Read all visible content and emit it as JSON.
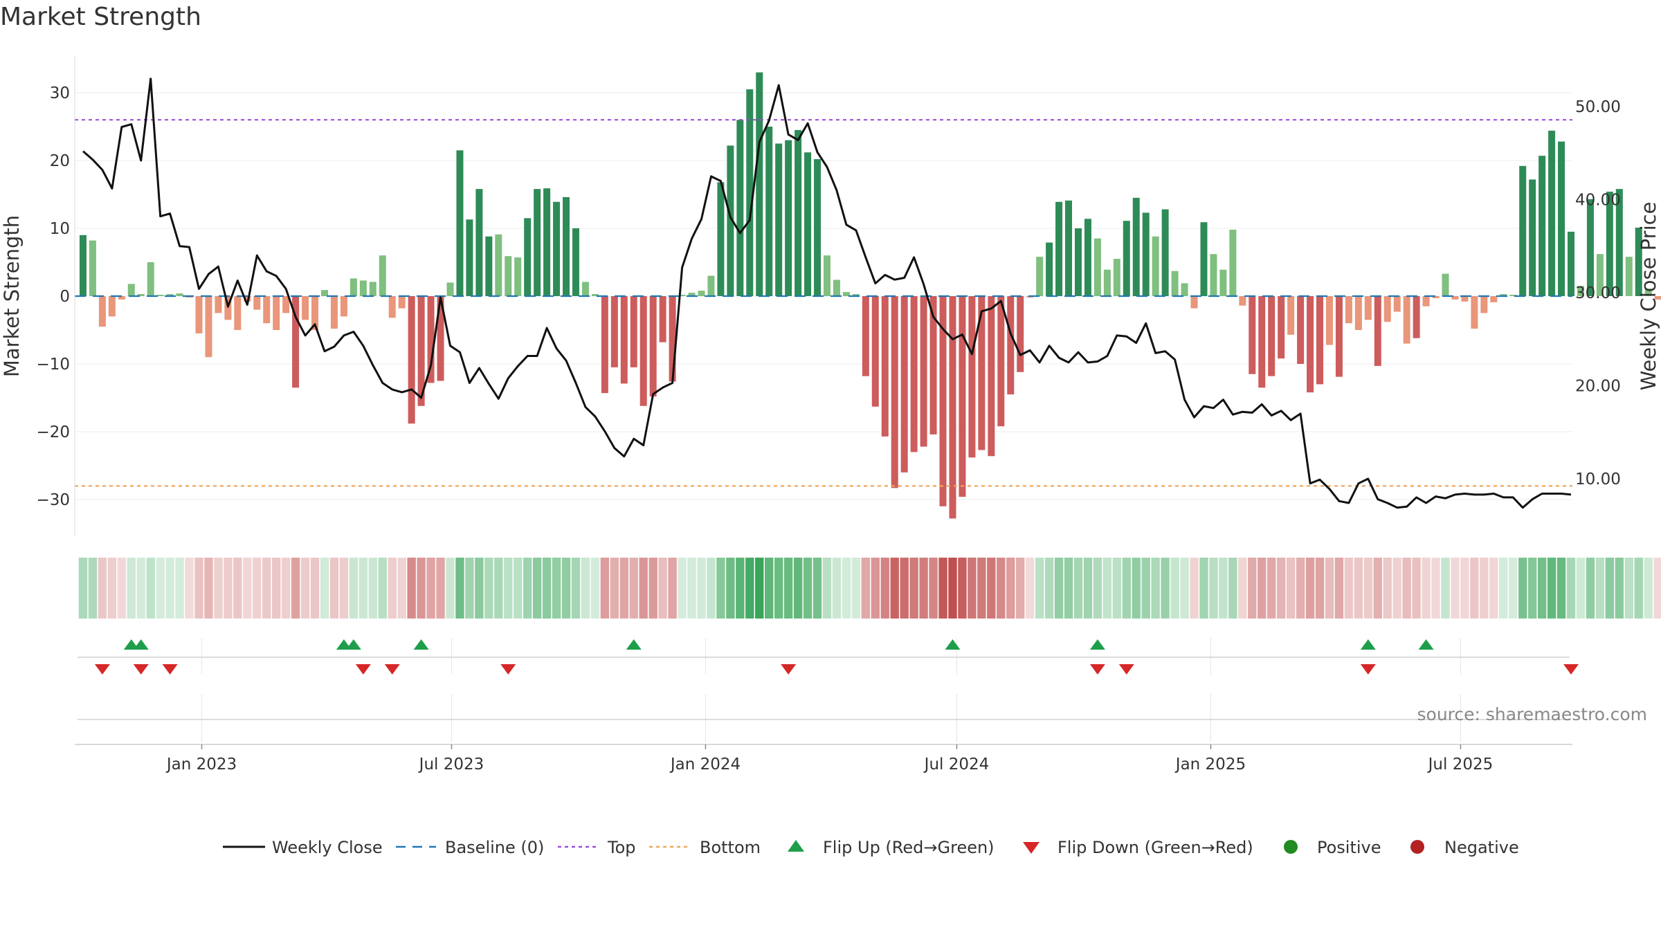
{
  "title": "Market Strength",
  "source": "source: sharemaestro.com",
  "colors": {
    "strong_green": "#2e8b57",
    "light_green": "#7fbf7f",
    "strong_red": "#cd5c5c",
    "light_red": "#e9967a",
    "line": "#111111",
    "baseline": "#1f77b4",
    "top": "#9c4fd9",
    "bottom": "#f0a55a",
    "flip_up": "#1e9e4a",
    "flip_down": "#d62728",
    "positive": "#228b22",
    "negative": "#b22222"
  },
  "chart_data": {
    "type": "bar+line",
    "title": "Market Strength",
    "ylabel_left": "Market Strength",
    "ylabel_right": "Weekly Close Price",
    "ylim_left": [
      -35,
      35
    ],
    "ylim_right": [
      5,
      55
    ],
    "left_ticks": [
      30,
      20,
      10,
      0,
      -10,
      -20,
      -30
    ],
    "left_tick_labels": [
      "30",
      "20",
      "10",
      "0",
      "−10",
      "−20",
      "−30"
    ],
    "right_ticks": [
      50,
      40,
      30,
      20,
      10
    ],
    "right_tick_labels": [
      "50.00",
      "40.00",
      "30.00",
      "20.00",
      "10.00"
    ],
    "top_line": 26,
    "bottom_line": -28,
    "x_start": "2022-10-01",
    "x_end": "2025-09-20",
    "x_ticks": [
      {
        "date": "2023-01-01",
        "label": "Jan 2023"
      },
      {
        "date": "2023-07-01",
        "label": "Jul 2023"
      },
      {
        "date": "2024-01-01",
        "label": "Jan 2024"
      },
      {
        "date": "2024-07-01",
        "label": "Jul 2024"
      },
      {
        "date": "2025-01-01",
        "label": "Jan 2025"
      },
      {
        "date": "2025-07-01",
        "label": "Jul 2025"
      }
    ],
    "series_start": "2022-10-07",
    "week_step_days": 7,
    "strength": [
      9,
      8.2,
      -4.5,
      -3,
      -0.5,
      1.8,
      0.3,
      5,
      0.2,
      0.3,
      0.4,
      -0.2,
      -5.5,
      -9,
      -2.5,
      -3.5,
      -5,
      -0.8,
      -2,
      -4,
      -5,
      -2.5,
      -13.5,
      -3.5,
      -5,
      0.9,
      -4.8,
      -3,
      2.6,
      2.3,
      2.1,
      6,
      -3.2,
      -1.8,
      -18.8,
      -16.2,
      -12.8,
      -12.5,
      2,
      21.5,
      11.3,
      15.8,
      8.8,
      9.1,
      5.9,
      5.7,
      11.5,
      15.8,
      15.9,
      13.9,
      14.6,
      10,
      2.1,
      0.3,
      -14.3,
      -10.5,
      -12.9,
      -10.5,
      -16.2,
      -14.8,
      -6.8,
      -12.6,
      0.2,
      0.5,
      0.8,
      3,
      16.8,
      22.2,
      26,
      30.5,
      33,
      25,
      22.5,
      23,
      24.5,
      21.2,
      20.2,
      6,
      2.4,
      0.6,
      0.3,
      -11.8,
      -16.3,
      -20.7,
      -28.3,
      -26,
      -23,
      -22.2,
      -20.4,
      -31,
      -32.8,
      -29.6,
      -23.8,
      -22.7,
      -23.6,
      -19.2,
      -14.5,
      -11.2,
      -0.2,
      5.8,
      7.9,
      13.9,
      14.1,
      10,
      11.4,
      8.5,
      3.9,
      5.5,
      11.1,
      14.5,
      12.3,
      8.8,
      12.8,
      3.7,
      1.9,
      -1.8,
      10.9,
      6.2,
      3.9,
      9.8,
      -1.4,
      -11.5,
      -13.5,
      -11.8,
      -9.2,
      -5.7,
      -10,
      -14.2,
      -13,
      -7.2,
      -11.9,
      -4,
      -5,
      -3.5,
      -10.3,
      -3.8,
      -2.3,
      -7,
      -6.2,
      -1.5,
      -0.3,
      3.3,
      -0.5,
      -0.8,
      -4.8,
      -2.5,
      -0.9,
      0.3,
      0.2,
      19.2,
      17.2,
      20.7,
      24.4,
      22.8,
      9.5,
      1.5,
      14.3,
      6.2,
      15.4,
      15.8,
      5.8,
      10.1,
      1.1,
      -0.5
    ],
    "weekly_close": [
      45.2,
      44.3,
      43.2,
      41.2,
      47.8,
      48.1,
      44.2,
      53,
      38.2,
      38.5,
      35,
      34.9,
      30.4,
      32,
      32.8,
      28.5,
      31.3,
      28.7,
      34,
      32.3,
      31.8,
      30.4,
      27.4,
      25.4,
      26.6,
      23.7,
      24.2,
      25.4,
      25.8,
      24.3,
      22.2,
      20.3,
      19.6,
      19.3,
      19.6,
      18.7,
      22.2,
      29.5,
      24.3,
      23.6,
      20.3,
      21.9,
      20.2,
      18.6,
      20.8,
      22.1,
      23.2,
      23.2,
      26.2,
      24,
      22.7,
      20.3,
      17.7,
      16.7,
      15.1,
      13.3,
      12.4,
      14.3,
      13.6,
      19.1,
      19.8,
      20.3,
      32.7,
      35.8,
      37.9,
      42.5,
      42,
      38.1,
      36.4,
      37.8,
      46.2,
      48.5,
      52.3,
      47,
      46.4,
      48.2,
      45.1,
      43.5,
      41,
      37.3,
      36.7,
      33.8,
      31,
      31.9,
      31.4,
      31.6,
      33.8,
      30.9,
      27.4,
      26.1,
      25,
      25.5,
      23.4,
      28,
      28.3,
      29.1,
      25.6,
      23.3,
      23.8,
      22.5,
      24.3,
      23,
      22.5,
      23.6,
      22.5,
      22.6,
      23.2,
      25.4,
      25.3,
      24.6,
      26.7,
      23.5,
      23.7,
      22.8,
      18.5,
      16.6,
      17.8,
      17.6,
      18.5,
      16.9,
      17.2,
      17.1,
      18,
      16.8,
      17.3,
      16.3,
      17,
      9.5,
      9.9,
      8.9,
      7.6,
      7.4,
      9.5,
      10,
      7.8,
      7.4,
      6.9,
      7,
      8,
      7.4,
      8.1,
      7.9,
      8.3,
      8.4,
      8.3,
      8.3,
      8.4,
      8,
      8,
      6.9,
      7.8,
      8.4,
      8.4,
      8.4,
      8.3
    ]
  },
  "flip_markers": {
    "up_dates": [
      "2022-11-11",
      "2022-11-18",
      "2023-04-14",
      "2023-04-21",
      "2023-06-09",
      "2023-11-10",
      "2024-06-28",
      "2024-10-11",
      "2025-04-25",
      "2025-06-06"
    ],
    "down_dates": [
      "2022-10-21",
      "2022-11-18",
      "2022-12-09",
      "2023-04-28",
      "2023-05-19",
      "2023-08-11",
      "2024-03-01",
      "2024-10-11",
      "2024-11-01",
      "2025-04-25",
      "2025-09-19"
    ]
  },
  "legend": {
    "weekly_close": "Weekly Close",
    "baseline": "Baseline (0)",
    "top": "Top",
    "bottom": "Bottom",
    "flip_up": "Flip Up (Red→Green)",
    "flip_down": "Flip Down (Green→Red)",
    "positive": "Positive",
    "negative": "Negative"
  }
}
